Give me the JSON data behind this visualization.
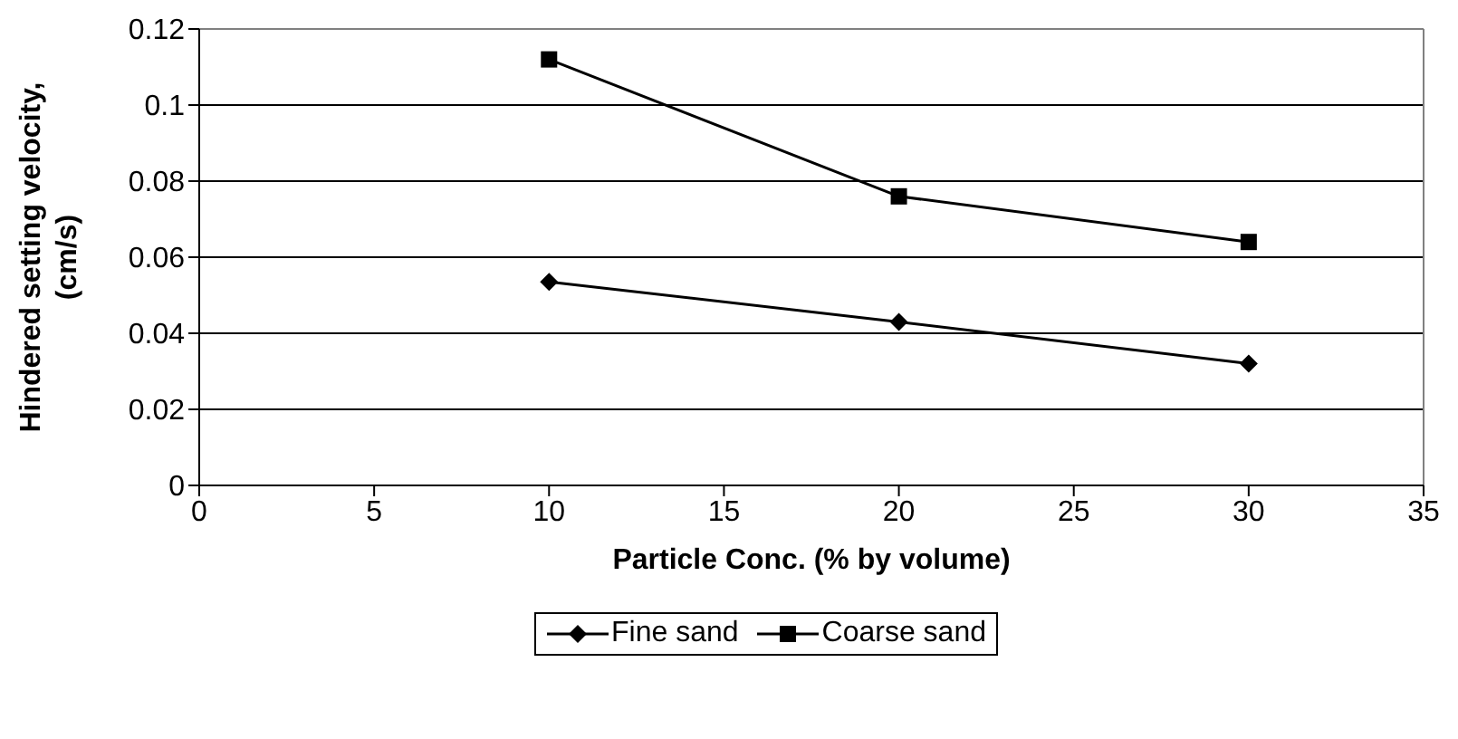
{
  "chart_data": {
    "type": "line",
    "xlabel": "Particle Conc. (% by volume)",
    "ylabel": "Hindered setting velocity, (cm/s)",
    "x": [
      10,
      20,
      30
    ],
    "series": [
      {
        "name": "Fine sand",
        "color": "#000000",
        "marker": "diamond",
        "values": [
          0.0535,
          0.043,
          0.032
        ]
      },
      {
        "name": "Coarse sand",
        "color": "#000000",
        "marker": "square",
        "values": [
          0.112,
          0.076,
          0.064
        ]
      }
    ],
    "xlim": [
      0,
      35
    ],
    "xticks": [
      0,
      5,
      10,
      15,
      20,
      25,
      30,
      35
    ],
    "ylim": [
      0,
      0.12
    ],
    "yticks": [
      0,
      0.02,
      0.04,
      0.06,
      0.08,
      0.1,
      0.12
    ],
    "grid": "y",
    "legend": "bottom",
    "line_style": "solid"
  }
}
